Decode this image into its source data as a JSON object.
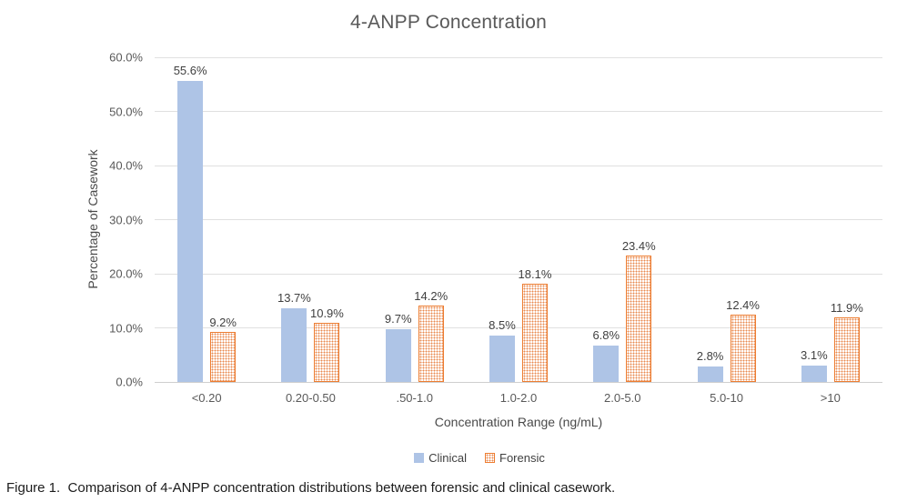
{
  "figure": {
    "caption": "Figure 1.  Comparison of 4-ANPP concentration distributions between forensic and clinical casework."
  },
  "colors": {
    "clinical_fill": "#aec4e6",
    "forensic_accent": "#ed7d31",
    "gridline": "#e0e0e0",
    "axis_text": "#595959",
    "label_text": "#404040"
  },
  "chart_data": {
    "type": "bar",
    "title": "4-ANPP Concentration",
    "xlabel": "Concentration Range (ng/mL)",
    "ylabel": "Percentage of Casework",
    "categories": [
      "<0.20",
      "0.20-0.50",
      ".50-1.0",
      "1.0-2.0",
      "2.0-5.0",
      "5.0-10",
      ">10"
    ],
    "series": [
      {
        "name": "Clinical",
        "style": "solid",
        "values": [
          55.6,
          13.7,
          9.7,
          8.5,
          6.8,
          2.8,
          3.1
        ],
        "labels": [
          "55.6%",
          "13.7%",
          "9.7%",
          "8.5%",
          "6.8%",
          "2.8%",
          "3.1%"
        ]
      },
      {
        "name": "Forensic",
        "style": "dotted",
        "values": [
          9.2,
          10.9,
          14.2,
          18.1,
          23.4,
          12.4,
          11.9
        ],
        "labels": [
          "9.2%",
          "10.9%",
          "14.2%",
          "18.1%",
          "23.4%",
          "12.4%",
          "11.9%"
        ]
      }
    ],
    "ylim": [
      0,
      60
    ],
    "ytick_step": 10,
    "ytick_labels": [
      "0.0%",
      "10.0%",
      "20.0%",
      "30.0%",
      "40.0%",
      "50.0%",
      "60.0%"
    ],
    "grid": true,
    "legend_position": "bottom"
  }
}
